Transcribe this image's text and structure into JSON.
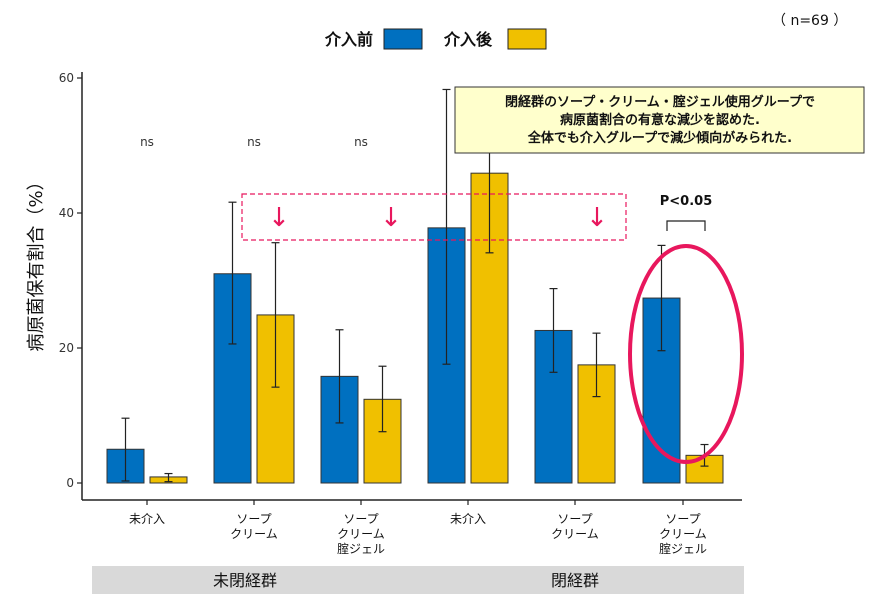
{
  "chart_data": {
    "type": "bar",
    "n_label": "（ n=69 ）",
    "ylabel": "病原菌保有割合（%）",
    "ylim": [
      0,
      60
    ],
    "yticks": [
      0,
      20,
      40,
      60
    ],
    "grid": false,
    "legend_position": "top",
    "categories": [
      {
        "label": [
          "未介入"
        ],
        "group": "未閉経群"
      },
      {
        "label": [
          "ソープ",
          "クリーム"
        ],
        "group": "未閉経群"
      },
      {
        "label": [
          "ソープ",
          "クリーム",
          "腟ジェル"
        ],
        "group": "未閉経群"
      },
      {
        "label": [
          "未介入"
        ],
        "group": "閉経群"
      },
      {
        "label": [
          "ソープ",
          "クリーム"
        ],
        "group": "閉経群"
      },
      {
        "label": [
          "ソープ",
          "クリーム",
          "腟ジェル"
        ],
        "group": "閉経群"
      }
    ],
    "groups": [
      "未閉経群",
      "閉経群"
    ],
    "series": [
      {
        "name": "介入前",
        "color": "#0070C0",
        "values": [
          5.0,
          31.0,
          15.8,
          37.8,
          22.6,
          27.4
        ],
        "error_low": [
          0.3,
          20.6,
          8.9,
          17.6,
          16.4,
          19.6
        ],
        "error_high": [
          9.6,
          41.6,
          22.7,
          58.3,
          28.8,
          35.2
        ]
      },
      {
        "name": "介入後",
        "color": "#F0C000",
        "values": [
          0.9,
          24.9,
          12.4,
          45.9,
          17.5,
          4.1
        ],
        "error_low": [
          0.2,
          14.2,
          7.6,
          34.1,
          12.8,
          2.5
        ],
        "error_high": [
          1.4,
          35.6,
          17.3,
          57.6,
          22.2,
          5.7
        ]
      }
    ],
    "annotations": {
      "ns_labels": [
        "ns",
        "ns",
        "ns"
      ],
      "significance": "P<0.05",
      "note_lines": [
        "閉経群のソープ・クリーム・腟ジェル使用グループで",
        "病原菌割合の有意な減少を認めた.",
        "全体でも介入グループで減少傾向がみられた."
      ],
      "arrow_glyph": "↓",
      "highlight_color": "#E8175D"
    }
  }
}
